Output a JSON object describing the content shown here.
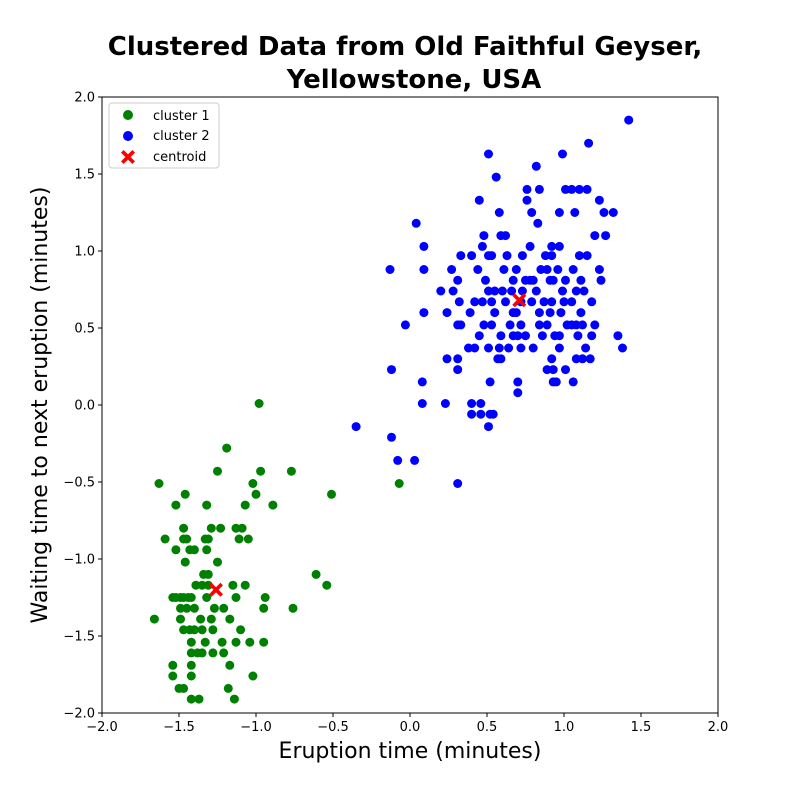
{
  "chart_data": {
    "type": "scatter",
    "title": "Clustered Data from Old Faithful Geyser,",
    "subtitle": "Yellowstone, USA",
    "xlabel": "Eruption time (minutes)",
    "ylabel": "Waiting time to next eruption (minutes)",
    "xlim": [
      -2.0,
      2.0
    ],
    "ylim": [
      -2.0,
      2.0
    ],
    "xticks": [
      -2.0,
      -1.5,
      -1.0,
      -0.5,
      0.0,
      0.5,
      1.0,
      1.5,
      2.0
    ],
    "yticks": [
      -2.0,
      -1.5,
      -1.0,
      -0.5,
      0.0,
      0.5,
      1.0,
      1.5,
      2.0
    ],
    "xtick_labels": [
      "−2.0",
      "−1.5",
      "−1.0",
      "−0.5",
      "0.0",
      "0.5",
      "1.0",
      "1.5",
      "2.0"
    ],
    "ytick_labels": [
      "−2.0",
      "−1.5",
      "−1.0",
      "−0.5",
      "0.0",
      "0.5",
      "1.0",
      "1.5",
      "2.0"
    ],
    "grid": false,
    "legend_position": "top-left",
    "series": [
      {
        "name": "cluster 1",
        "color": "#008000",
        "marker": "circle",
        "points": [
          [
            -0.98,
            0.01
          ],
          [
            -1.19,
            -0.28
          ],
          [
            -1.25,
            -0.43
          ],
          [
            -0.97,
            -0.43
          ],
          [
            -0.77,
            -0.43
          ],
          [
            -1.63,
            -0.51
          ],
          [
            -1.02,
            -0.51
          ],
          [
            -0.07,
            -0.51
          ],
          [
            -1.46,
            -0.58
          ],
          [
            -1.0,
            -0.58
          ],
          [
            -0.51,
            -0.58
          ],
          [
            -1.52,
            -0.65
          ],
          [
            -1.32,
            -0.65
          ],
          [
            -1.07,
            -0.65
          ],
          [
            -0.89,
            -0.65
          ],
          [
            -1.47,
            -0.8
          ],
          [
            -1.29,
            -0.8
          ],
          [
            -1.23,
            -0.8
          ],
          [
            -1.13,
            -0.8
          ],
          [
            -1.09,
            -0.8
          ],
          [
            -1.59,
            -0.87
          ],
          [
            -1.47,
            -0.87
          ],
          [
            -1.45,
            -0.87
          ],
          [
            -1.33,
            -0.87
          ],
          [
            -1.31,
            -0.87
          ],
          [
            -1.11,
            -0.87
          ],
          [
            -1.05,
            -0.87
          ],
          [
            -1.52,
            -0.94
          ],
          [
            -1.43,
            -0.94
          ],
          [
            -1.4,
            -0.94
          ],
          [
            -1.32,
            -0.94
          ],
          [
            -1.46,
            -1.02
          ],
          [
            -1.25,
            -1.02
          ],
          [
            -1.34,
            -1.1
          ],
          [
            -1.31,
            -1.1
          ],
          [
            -0.61,
            -1.1
          ],
          [
            -1.39,
            -1.17
          ],
          [
            -1.35,
            -1.17
          ],
          [
            -1.31,
            -1.17
          ],
          [
            -1.15,
            -1.17
          ],
          [
            -1.07,
            -1.17
          ],
          [
            -0.54,
            -1.17
          ],
          [
            -1.54,
            -1.25
          ],
          [
            -1.52,
            -1.25
          ],
          [
            -1.49,
            -1.25
          ],
          [
            -1.47,
            -1.25
          ],
          [
            -1.44,
            -1.25
          ],
          [
            -1.42,
            -1.25
          ],
          [
            -1.32,
            -1.25
          ],
          [
            -1.13,
            -1.25
          ],
          [
            -0.94,
            -1.25
          ],
          [
            -1.49,
            -1.32
          ],
          [
            -1.45,
            -1.32
          ],
          [
            -1.4,
            -1.32
          ],
          [
            -1.27,
            -1.32
          ],
          [
            -1.21,
            -1.32
          ],
          [
            -0.95,
            -1.32
          ],
          [
            -0.76,
            -1.32
          ],
          [
            -1.66,
            -1.39
          ],
          [
            -1.49,
            -1.39
          ],
          [
            -1.36,
            -1.39
          ],
          [
            -1.29,
            -1.39
          ],
          [
            -1.17,
            -1.39
          ],
          [
            -1.47,
            -1.46
          ],
          [
            -1.43,
            -1.46
          ],
          [
            -1.4,
            -1.46
          ],
          [
            -1.35,
            -1.46
          ],
          [
            -1.28,
            -1.46
          ],
          [
            -1.1,
            -1.46
          ],
          [
            -1.42,
            -1.54
          ],
          [
            -1.33,
            -1.54
          ],
          [
            -1.22,
            -1.54
          ],
          [
            -1.13,
            -1.54
          ],
          [
            -1.04,
            -1.54
          ],
          [
            -0.95,
            -1.54
          ],
          [
            -1.42,
            -1.61
          ],
          [
            -1.38,
            -1.61
          ],
          [
            -1.35,
            -1.61
          ],
          [
            -1.28,
            -1.61
          ],
          [
            -1.21,
            -1.61
          ],
          [
            -1.54,
            -1.69
          ],
          [
            -1.42,
            -1.69
          ],
          [
            -1.17,
            -1.69
          ],
          [
            -1.54,
            -1.76
          ],
          [
            -1.42,
            -1.76
          ],
          [
            -1.02,
            -1.76
          ],
          [
            -1.5,
            -1.84
          ],
          [
            -1.47,
            -1.84
          ],
          [
            -1.18,
            -1.84
          ],
          [
            -1.42,
            -1.91
          ],
          [
            -1.37,
            -1.91
          ],
          [
            -1.14,
            -1.91
          ]
        ]
      },
      {
        "name": "cluster 2",
        "color": "#0000ff",
        "marker": "circle",
        "points": [
          [
            1.42,
            1.85
          ],
          [
            1.16,
            1.7
          ],
          [
            0.51,
            1.63
          ],
          [
            0.99,
            1.63
          ],
          [
            0.82,
            1.55
          ],
          [
            0.56,
            1.48
          ],
          [
            0.76,
            1.4
          ],
          [
            0.84,
            1.4
          ],
          [
            1.01,
            1.4
          ],
          [
            1.05,
            1.4
          ],
          [
            1.1,
            1.4
          ],
          [
            1.15,
            1.4
          ],
          [
            0.45,
            1.33
          ],
          [
            0.76,
            1.33
          ],
          [
            1.23,
            1.33
          ],
          [
            0.58,
            1.25
          ],
          [
            0.79,
            1.25
          ],
          [
            0.97,
            1.25
          ],
          [
            1.07,
            1.25
          ],
          [
            1.26,
            1.25
          ],
          [
            1.32,
            1.25
          ],
          [
            0.04,
            1.18
          ],
          [
            0.83,
            1.18
          ],
          [
            0.59,
            1.1
          ],
          [
            0.62,
            1.1
          ],
          [
            1.2,
            1.1
          ],
          [
            1.27,
            1.1
          ],
          [
            0.48,
            1.1
          ],
          [
            0.09,
            1.03
          ],
          [
            0.47,
            1.03
          ],
          [
            0.78,
            1.03
          ],
          [
            0.92,
            1.03
          ],
          [
            0.97,
            1.03
          ],
          [
            0.33,
            0.97
          ],
          [
            0.4,
            0.97
          ],
          [
            0.51,
            0.97
          ],
          [
            0.53,
            0.97
          ],
          [
            0.63,
            0.97
          ],
          [
            0.73,
            0.97
          ],
          [
            0.88,
            0.97
          ],
          [
            0.92,
            0.97
          ],
          [
            1.1,
            0.97
          ],
          [
            1.15,
            0.97
          ],
          [
            -0.13,
            0.88
          ],
          [
            0.09,
            0.88
          ],
          [
            0.27,
            0.88
          ],
          [
            0.44,
            0.88
          ],
          [
            0.61,
            0.88
          ],
          [
            0.69,
            0.88
          ],
          [
            0.85,
            0.88
          ],
          [
            0.89,
            0.88
          ],
          [
            0.96,
            0.88
          ],
          [
            1.06,
            0.88
          ],
          [
            1.23,
            0.88
          ],
          [
            0.31,
            0.81
          ],
          [
            0.49,
            0.81
          ],
          [
            0.67,
            0.81
          ],
          [
            0.75,
            0.81
          ],
          [
            0.78,
            0.81
          ],
          [
            0.8,
            0.81
          ],
          [
            0.91,
            0.81
          ],
          [
            0.93,
            0.81
          ],
          [
            1.01,
            0.81
          ],
          [
            1.11,
            0.81
          ],
          [
            1.24,
            0.81
          ],
          [
            0.2,
            0.74
          ],
          [
            0.28,
            0.74
          ],
          [
            0.51,
            0.74
          ],
          [
            0.55,
            0.74
          ],
          [
            0.6,
            0.74
          ],
          [
            0.66,
            0.74
          ],
          [
            0.73,
            0.74
          ],
          [
            0.82,
            0.74
          ],
          [
            0.99,
            0.74
          ],
          [
            1.08,
            0.74
          ],
          [
            1.13,
            0.74
          ],
          [
            0.32,
            0.67
          ],
          [
            0.42,
            0.67
          ],
          [
            0.47,
            0.67
          ],
          [
            0.53,
            0.67
          ],
          [
            0.62,
            0.67
          ],
          [
            0.72,
            0.67
          ],
          [
            0.79,
            0.67
          ],
          [
            0.87,
            0.67
          ],
          [
            0.92,
            0.67
          ],
          [
            1.0,
            0.67
          ],
          [
            1.05,
            0.67
          ],
          [
            1.18,
            0.67
          ],
          [
            0.09,
            0.6
          ],
          [
            0.24,
            0.6
          ],
          [
            0.39,
            0.6
          ],
          [
            0.55,
            0.6
          ],
          [
            0.67,
            0.6
          ],
          [
            0.69,
            0.6
          ],
          [
            0.84,
            0.6
          ],
          [
            0.91,
            0.6
          ],
          [
            0.98,
            0.6
          ],
          [
            1.11,
            0.6
          ],
          [
            -0.03,
            0.52
          ],
          [
            0.31,
            0.52
          ],
          [
            0.33,
            0.52
          ],
          [
            0.48,
            0.52
          ],
          [
            0.53,
            0.52
          ],
          [
            0.65,
            0.52
          ],
          [
            0.72,
            0.52
          ],
          [
            0.84,
            0.52
          ],
          [
            0.89,
            0.52
          ],
          [
            1.02,
            0.52
          ],
          [
            1.05,
            0.52
          ],
          [
            1.08,
            0.52
          ],
          [
            1.12,
            0.52
          ],
          [
            1.2,
            0.52
          ],
          [
            0.45,
            0.45
          ],
          [
            0.59,
            0.45
          ],
          [
            0.67,
            0.45
          ],
          [
            0.7,
            0.45
          ],
          [
            0.75,
            0.45
          ],
          [
            0.86,
            0.45
          ],
          [
            0.94,
            0.45
          ],
          [
            0.97,
            0.45
          ],
          [
            1.09,
            0.45
          ],
          [
            1.18,
            0.45
          ],
          [
            1.35,
            0.45
          ],
          [
            0.38,
            0.37
          ],
          [
            0.42,
            0.37
          ],
          [
            0.51,
            0.37
          ],
          [
            0.58,
            0.37
          ],
          [
            0.64,
            0.37
          ],
          [
            0.72,
            0.37
          ],
          [
            0.8,
            0.37
          ],
          [
            0.97,
            0.37
          ],
          [
            1.14,
            0.37
          ],
          [
            1.38,
            0.37
          ],
          [
            0.24,
            0.3
          ],
          [
            0.31,
            0.3
          ],
          [
            0.57,
            0.3
          ],
          [
            0.59,
            0.3
          ],
          [
            0.92,
            0.3
          ],
          [
            1.08,
            0.3
          ],
          [
            1.12,
            0.3
          ],
          [
            1.17,
            0.3
          ],
          [
            -0.12,
            0.23
          ],
          [
            0.31,
            0.23
          ],
          [
            0.89,
            0.23
          ],
          [
            0.93,
            0.23
          ],
          [
            1.01,
            0.23
          ],
          [
            0.08,
            0.15
          ],
          [
            0.52,
            0.15
          ],
          [
            0.7,
            0.15
          ],
          [
            0.93,
            0.15
          ],
          [
            0.95,
            0.15
          ],
          [
            1.06,
            0.15
          ],
          [
            0.7,
            0.08
          ],
          [
            0.08,
            0.01
          ],
          [
            0.23,
            0.01
          ],
          [
            0.4,
            0.01
          ],
          [
            0.46,
            0.01
          ],
          [
            0.4,
            -0.06
          ],
          [
            0.46,
            -0.06
          ],
          [
            0.52,
            -0.06
          ],
          [
            0.54,
            -0.06
          ],
          [
            0.51,
            -0.14
          ],
          [
            -0.35,
            -0.14
          ],
          [
            -0.12,
            -0.21
          ],
          [
            -0.08,
            -0.36
          ],
          [
            0.03,
            -0.36
          ],
          [
            0.31,
            -0.51
          ]
        ]
      },
      {
        "name": "centroid",
        "color": "#ff0000",
        "marker": "x-filled",
        "points": [
          [
            -1.26,
            -1.2
          ],
          [
            0.71,
            0.68
          ]
        ]
      }
    ]
  }
}
